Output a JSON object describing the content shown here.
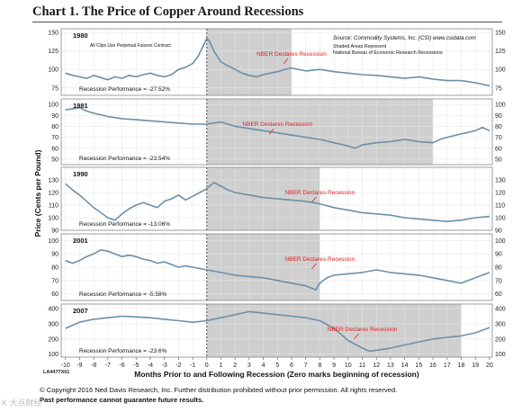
{
  "chart_data": {
    "type": "line",
    "title": "Chart 1. The Price of Copper Around Recessions",
    "source": "Source: Commodity Systems, Inc. (CSI) www.csidata.com",
    "shaded_note": [
      "Shaded Areas Represent",
      "National Bureau of Economic Research Recessions"
    ],
    "panel_note": "All Clips Use Perpetual Futures Contract",
    "ylabel": "Price (Cents per Pound)",
    "xlabel": "Months Prior to and Following Recession (Zero marks beginning of recession)",
    "x_ticks": [
      -10,
      -9,
      -8,
      -7,
      -6,
      -5,
      -4,
      -3,
      -2,
      -1,
      0,
      1,
      2,
      3,
      4,
      5,
      6,
      7,
      8,
      9,
      10,
      11,
      12,
      13,
      14,
      15,
      16,
      17,
      18,
      19,
      20
    ],
    "x_tick_labels": [
      "-10",
      "-9",
      "-8",
      "-7",
      "-6",
      "-5",
      "-4",
      "-3",
      "-2",
      "-1",
      "0",
      "1",
      "2",
      "3",
      "4",
      "5",
      "6",
      "7",
      "8",
      "9",
      "10",
      "11",
      "12",
      "13",
      "14",
      "15",
      "16",
      "17",
      "18",
      "19",
      "20"
    ],
    "xlim": [
      -10.3,
      20.2
    ],
    "grid": true,
    "figure_id": "LA4477X01",
    "panels": [
      {
        "year": "1980",
        "ylim": [
          65,
          155
        ],
        "yticks": [
          75,
          100,
          125,
          150
        ],
        "yticklabels": [
          "75",
          "100",
          "125",
          "150"
        ],
        "shade": [
          0,
          6
        ],
        "annotation": "NBER Declares Recession",
        "annotation_x": 6,
        "performance": "Recession Performance = -27.52%",
        "points": [
          [
            -10,
            95
          ],
          [
            -9.5,
            92
          ],
          [
            -9,
            90
          ],
          [
            -8.5,
            88
          ],
          [
            -8,
            92
          ],
          [
            -7.5,
            89
          ],
          [
            -7,
            86
          ],
          [
            -6.5,
            90
          ],
          [
            -6,
            88
          ],
          [
            -5.5,
            92
          ],
          [
            -5,
            90
          ],
          [
            -4.5,
            93
          ],
          [
            -4,
            95
          ],
          [
            -3.5,
            92
          ],
          [
            -3,
            90
          ],
          [
            -2.5,
            93
          ],
          [
            -2,
            100
          ],
          [
            -1.5,
            103
          ],
          [
            -1,
            108
          ],
          [
            -0.6,
            118
          ],
          [
            -0.3,
            130
          ],
          [
            0,
            142
          ],
          [
            0.2,
            138
          ],
          [
            0.5,
            125
          ],
          [
            1,
            110
          ],
          [
            1.5,
            105
          ],
          [
            2,
            100
          ],
          [
            2.5,
            95
          ],
          [
            3,
            92
          ],
          [
            3.5,
            90
          ],
          [
            4,
            93
          ],
          [
            4.5,
            95
          ],
          [
            5,
            97
          ],
          [
            5.5,
            100
          ],
          [
            6,
            102
          ],
          [
            7,
            98
          ],
          [
            8,
            100
          ],
          [
            9,
            97
          ],
          [
            10,
            95
          ],
          [
            11,
            93
          ],
          [
            12,
            92
          ],
          [
            13,
            90
          ],
          [
            14,
            88
          ],
          [
            15,
            90
          ],
          [
            16,
            87
          ],
          [
            17,
            85
          ],
          [
            18,
            85
          ],
          [
            19,
            82
          ],
          [
            20,
            78
          ]
        ]
      },
      {
        "year": "1981",
        "ylim": [
          45,
          105
        ],
        "yticks": [
          50,
          60,
          70,
          80,
          90,
          100
        ],
        "yticklabels": [
          "50",
          "60",
          "70",
          "80",
          "90",
          "100"
        ],
        "shade": [
          0,
          16
        ],
        "annotation": "NBER Declares Recession",
        "annotation_x": 5,
        "performance": "Recession Performance = -23.54%",
        "points": [
          [
            -10,
            95
          ],
          [
            -9,
            97
          ],
          [
            -8.5,
            94
          ],
          [
            -8,
            92
          ],
          [
            -7,
            89
          ],
          [
            -6,
            87
          ],
          [
            -5,
            86
          ],
          [
            -4,
            85
          ],
          [
            -3,
            84
          ],
          [
            -2,
            83
          ],
          [
            -1,
            82
          ],
          [
            0,
            82
          ],
          [
            1,
            84
          ],
          [
            2,
            80
          ],
          [
            3,
            78
          ],
          [
            4,
            76
          ],
          [
            5,
            74
          ],
          [
            6,
            72
          ],
          [
            7,
            70
          ],
          [
            8,
            68
          ],
          [
            9,
            65
          ],
          [
            10,
            62
          ],
          [
            10.5,
            60
          ],
          [
            11,
            63
          ],
          [
            12,
            65
          ],
          [
            13,
            66
          ],
          [
            14,
            68
          ],
          [
            15,
            66
          ],
          [
            16,
            65
          ],
          [
            16.5,
            68
          ],
          [
            17,
            70
          ],
          [
            18,
            73
          ],
          [
            19,
            76
          ],
          [
            19.5,
            79
          ],
          [
            20,
            76
          ]
        ]
      },
      {
        "year": "1990",
        "ylim": [
          90,
          140
        ],
        "yticks": [
          90,
          100,
          110,
          120,
          130
        ],
        "yticklabels": [
          "90",
          "100",
          "110",
          "120",
          "130"
        ],
        "shade": [
          0,
          8
        ],
        "annotation": "NBER Declares Recession",
        "annotation_x": 8,
        "performance": "Recession Performance = -13.06%",
        "points": [
          [
            -10,
            127
          ],
          [
            -9.5,
            122
          ],
          [
            -9,
            118
          ],
          [
            -8.5,
            113
          ],
          [
            -8,
            108
          ],
          [
            -7.5,
            104
          ],
          [
            -7,
            100
          ],
          [
            -6.5,
            98
          ],
          [
            -6,
            103
          ],
          [
            -5.5,
            107
          ],
          [
            -5,
            110
          ],
          [
            -4.5,
            112
          ],
          [
            -4,
            110
          ],
          [
            -3.5,
            108
          ],
          [
            -3,
            113
          ],
          [
            -2.5,
            115
          ],
          [
            -2,
            118
          ],
          [
            -1.5,
            114
          ],
          [
            -1,
            117
          ],
          [
            -0.5,
            120
          ],
          [
            0,
            123
          ],
          [
            0.5,
            128
          ],
          [
            1,
            125
          ],
          [
            1.5,
            122
          ],
          [
            2,
            120
          ],
          [
            3,
            118
          ],
          [
            4,
            116
          ],
          [
            5,
            115
          ],
          [
            6,
            114
          ],
          [
            7,
            113
          ],
          [
            8,
            111
          ],
          [
            9,
            108
          ],
          [
            10,
            106
          ],
          [
            11,
            104
          ],
          [
            12,
            103
          ],
          [
            13,
            102
          ],
          [
            14,
            100
          ],
          [
            15,
            99
          ],
          [
            16,
            98
          ],
          [
            17,
            97
          ],
          [
            18,
            98
          ],
          [
            19,
            100
          ],
          [
            20,
            101
          ]
        ]
      },
      {
        "year": "2001",
        "ylim": [
          55,
          105
        ],
        "yticks": [
          60,
          70,
          80,
          90,
          100
        ],
        "yticklabels": [
          "60",
          "70",
          "80",
          "90",
          "100"
        ],
        "shade": [
          0,
          8
        ],
        "annotation": "NBER Declares Recession",
        "annotation_x": 8,
        "performance": "Recession Performance = -5.58%",
        "points": [
          [
            -10,
            85
          ],
          [
            -9.5,
            83
          ],
          [
            -9,
            85
          ],
          [
            -8.5,
            88
          ],
          [
            -8,
            90
          ],
          [
            -7.5,
            93
          ],
          [
            -7,
            92
          ],
          [
            -6.5,
            90
          ],
          [
            -6,
            88
          ],
          [
            -5.5,
            89
          ],
          [
            -5,
            88
          ],
          [
            -4.5,
            86
          ],
          [
            -4,
            85
          ],
          [
            -3.5,
            83
          ],
          [
            -3,
            84
          ],
          [
            -2.5,
            82
          ],
          [
            -2,
            80
          ],
          [
            -1.5,
            81
          ],
          [
            -1,
            80
          ],
          [
            -0.5,
            79
          ],
          [
            0,
            78
          ],
          [
            1,
            76
          ],
          [
            2,
            74
          ],
          [
            3,
            73
          ],
          [
            4,
            72
          ],
          [
            5,
            70
          ],
          [
            6,
            68
          ],
          [
            7,
            66
          ],
          [
            7.7,
            63
          ],
          [
            8,
            68
          ],
          [
            8.5,
            72
          ],
          [
            9,
            74
          ],
          [
            10,
            75
          ],
          [
            11,
            76
          ],
          [
            12,
            78
          ],
          [
            13,
            76
          ],
          [
            14,
            75
          ],
          [
            15,
            74
          ],
          [
            16,
            72
          ],
          [
            17,
            70
          ],
          [
            18,
            68
          ],
          [
            19,
            72
          ],
          [
            20,
            76
          ]
        ]
      },
      {
        "year": "2007",
        "ylim": [
          80,
          430
        ],
        "yticks": [
          100,
          200,
          300,
          400
        ],
        "yticklabels": [
          "100",
          "200",
          "300",
          "400"
        ],
        "shade": [
          0,
          18
        ],
        "annotation": "NBER Declares Recession",
        "annotation_x": 11,
        "performance": "Recession Performance = -23.6%",
        "points": [
          [
            -10,
            270
          ],
          [
            -9.5,
            290
          ],
          [
            -9,
            310
          ],
          [
            -8.5,
            320
          ],
          [
            -8,
            330
          ],
          [
            -7,
            340
          ],
          [
            -6,
            350
          ],
          [
            -5,
            345
          ],
          [
            -4,
            340
          ],
          [
            -3,
            330
          ],
          [
            -2,
            320
          ],
          [
            -1,
            310
          ],
          [
            0,
            320
          ],
          [
            1,
            340
          ],
          [
            2,
            360
          ],
          [
            3,
            380
          ],
          [
            4,
            370
          ],
          [
            5,
            360
          ],
          [
            6,
            350
          ],
          [
            7,
            340
          ],
          [
            8,
            320
          ],
          [
            9,
            270
          ],
          [
            10,
            190
          ],
          [
            11,
            140
          ],
          [
            11.5,
            120
          ],
          [
            12,
            125
          ],
          [
            13,
            140
          ],
          [
            14,
            160
          ],
          [
            15,
            180
          ],
          [
            16,
            200
          ],
          [
            17,
            210
          ],
          [
            18,
            220
          ],
          [
            19,
            240
          ],
          [
            20,
            275
          ]
        ]
      }
    ]
  },
  "footer": {
    "copyright": "© Copyright 2016 Ned Davis Research, Inc. Further distribution prohibited without prior permission. All rights reserved.",
    "disclaimer": "Past performance cannot guarantee future results."
  },
  "watermark": "K 大点财经",
  "colors": {
    "line": "#6d8fa8",
    "shade": "#cfcfcf",
    "annotation": "#e02020",
    "axis": "#888888"
  }
}
